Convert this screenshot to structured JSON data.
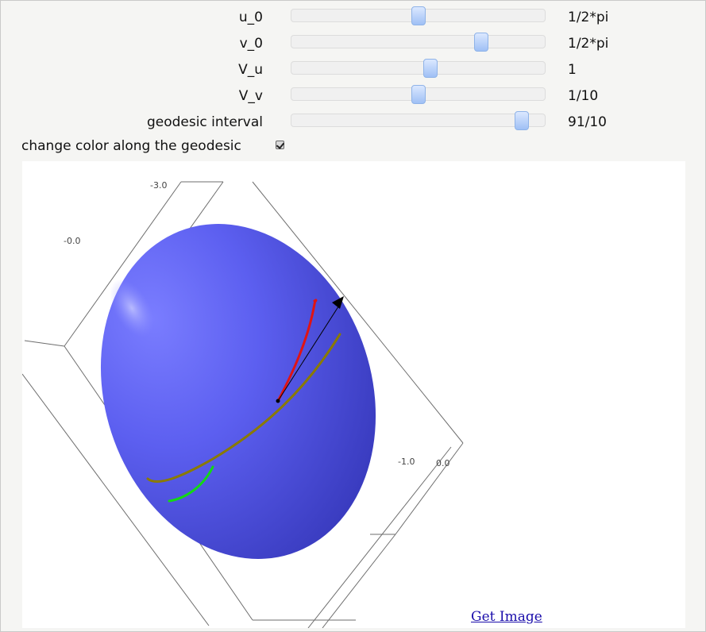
{
  "controls": {
    "sliders": [
      {
        "label": "u_0",
        "value_text": "1/2*pi",
        "position": 0.5
      },
      {
        "label": "v_0",
        "value_text": "1/2*pi",
        "position": 0.75
      },
      {
        "label": "V_u",
        "value_text": "1",
        "position": 0.55
      },
      {
        "label": "V_v",
        "value_text": "1/10",
        "position": 0.5
      },
      {
        "label": "geodesic interval",
        "value_text": "91/10",
        "position": 0.91
      }
    ],
    "checkbox": {
      "label": "change color along the geodesic",
      "checked": true
    }
  },
  "plot": {
    "tick_labels": {
      "top": "-3.0",
      "left": "-0.0",
      "right_1": "-1.0",
      "right_2": "0.0"
    },
    "surface_color": "#5c5ff0",
    "geodesic_colors": [
      "#00e000",
      "#8a7a00",
      "#e00000"
    ],
    "tangent_vector_color": "#000000"
  },
  "links": {
    "get_image": "Get Image"
  }
}
